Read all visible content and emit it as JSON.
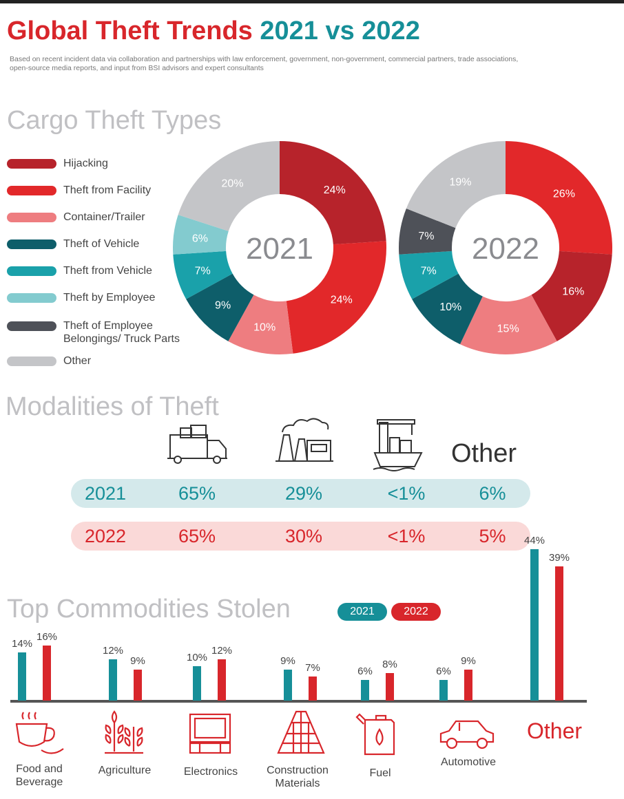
{
  "header": {
    "title_part1": "Global Theft Trends",
    "title_part2": "2021 vs 2022",
    "subtitle": "Based on recent incident data via collaboration and partnerships with law enforcement, government, non-government, commercial partners, trade associations, open-source media reports, and input from BSI advisors and expert consultants"
  },
  "colors": {
    "red": "#d8262b",
    "teal": "#168f98",
    "hijacking": "#b7232b",
    "theft_from_facility": "#e2282a",
    "container_trailer": "#ee7d80",
    "theft_of_vehicle": "#0e5e6a",
    "theft_from_vehicle": "#1aa1aa",
    "theft_by_employee": "#83cbcf",
    "theft_of_employee_belongings": "#4e5158",
    "other": "#c4c5c8"
  },
  "sections": {
    "cargo": "Cargo Theft Types",
    "modalities": "Modalities of Theft",
    "commodities": "Top Commodities Stolen"
  },
  "legend": [
    {
      "label": "Hijacking",
      "color": "#b7232b"
    },
    {
      "label": "Theft from Facility",
      "color": "#e2282a"
    },
    {
      "label": "Container/Trailer",
      "color": "#ee7d80"
    },
    {
      "label": "Theft of Vehicle",
      "color": "#0e5e6a"
    },
    {
      "label": "Theft from Vehicle",
      "color": "#1aa1aa"
    },
    {
      "label": "Theft by Employee",
      "color": "#83cbcf"
    },
    {
      "label": "Theft of Employee Belongings/ Truck Parts",
      "color": "#4e5158"
    },
    {
      "label": "Other",
      "color": "#c4c5c8"
    }
  ],
  "modalities": {
    "icons": [
      "truck-icon",
      "factory-icon",
      "ship-icon"
    ],
    "other_label": "Other",
    "rows": [
      {
        "year": "2021",
        "values": [
          "65%",
          "29%",
          "<1%",
          "6%"
        ]
      },
      {
        "year": "2022",
        "values": [
          "65%",
          "30%",
          "<1%",
          "5%"
        ]
      }
    ]
  },
  "commodities": {
    "legend_2021": "2021",
    "legend_2022": "2022",
    "categories": [
      {
        "label": "Food and Beverage",
        "icon": "coffee-icon"
      },
      {
        "label": "Agriculture",
        "icon": "wheat-icon"
      },
      {
        "label": "Electronics",
        "icon": "tv-icon"
      },
      {
        "label": "Construction Materials",
        "icon": "bricks-icon"
      },
      {
        "label": "Fuel",
        "icon": "fuel-can-icon"
      },
      {
        "label": "Automotive",
        "icon": "car-icon"
      },
      {
        "label": "Other",
        "icon": ""
      }
    ]
  },
  "chart_data": [
    {
      "type": "pie",
      "title": "2021",
      "slices": [
        {
          "label": "Hijacking",
          "value": 24,
          "text": "24%"
        },
        {
          "label": "Theft from Facility",
          "value": 24,
          "text": "24%"
        },
        {
          "label": "Container/Trailer",
          "value": 10,
          "text": "10%"
        },
        {
          "label": "Theft of Vehicle",
          "value": 9,
          "text": "9%"
        },
        {
          "label": "Theft from Vehicle",
          "value": 7,
          "text": "7%"
        },
        {
          "label": "Theft by Employee",
          "value": 6,
          "text": "6%"
        },
        {
          "label": "Other",
          "value": 20,
          "text": "20%"
        }
      ]
    },
    {
      "type": "pie",
      "title": "2022",
      "slices": [
        {
          "label": "Theft from Facility",
          "value": 26,
          "text": "26%"
        },
        {
          "label": "Hijacking",
          "value": 16,
          "text": "16%"
        },
        {
          "label": "Container/Trailer",
          "value": 15,
          "text": "15%"
        },
        {
          "label": "Theft of Vehicle",
          "value": 10,
          "text": "10%"
        },
        {
          "label": "Theft from Vehicle",
          "value": 7,
          "text": "7%"
        },
        {
          "label": "Theft of Employee Belongings/ Truck Parts",
          "value": 7,
          "text": "7%"
        },
        {
          "label": "Other",
          "value": 19,
          "text": "19%"
        }
      ]
    },
    {
      "type": "bar",
      "title": "Top Commodities Stolen",
      "categories": [
        "Food and Beverage",
        "Agriculture",
        "Electronics",
        "Construction Materials",
        "Fuel",
        "Automotive",
        "Other"
      ],
      "series": [
        {
          "name": "2021",
          "values": [
            14,
            12,
            10,
            9,
            6,
            6,
            44
          ],
          "labels": [
            "14%",
            "12%",
            "10%",
            "9%",
            "6%",
            "6%",
            "44%"
          ]
        },
        {
          "name": "2022",
          "values": [
            16,
            9,
            12,
            7,
            8,
            9,
            39
          ],
          "labels": [
            "16%",
            "9%",
            "12%",
            "7%",
            "8%",
            "9%",
            "39%"
          ]
        }
      ]
    }
  ]
}
